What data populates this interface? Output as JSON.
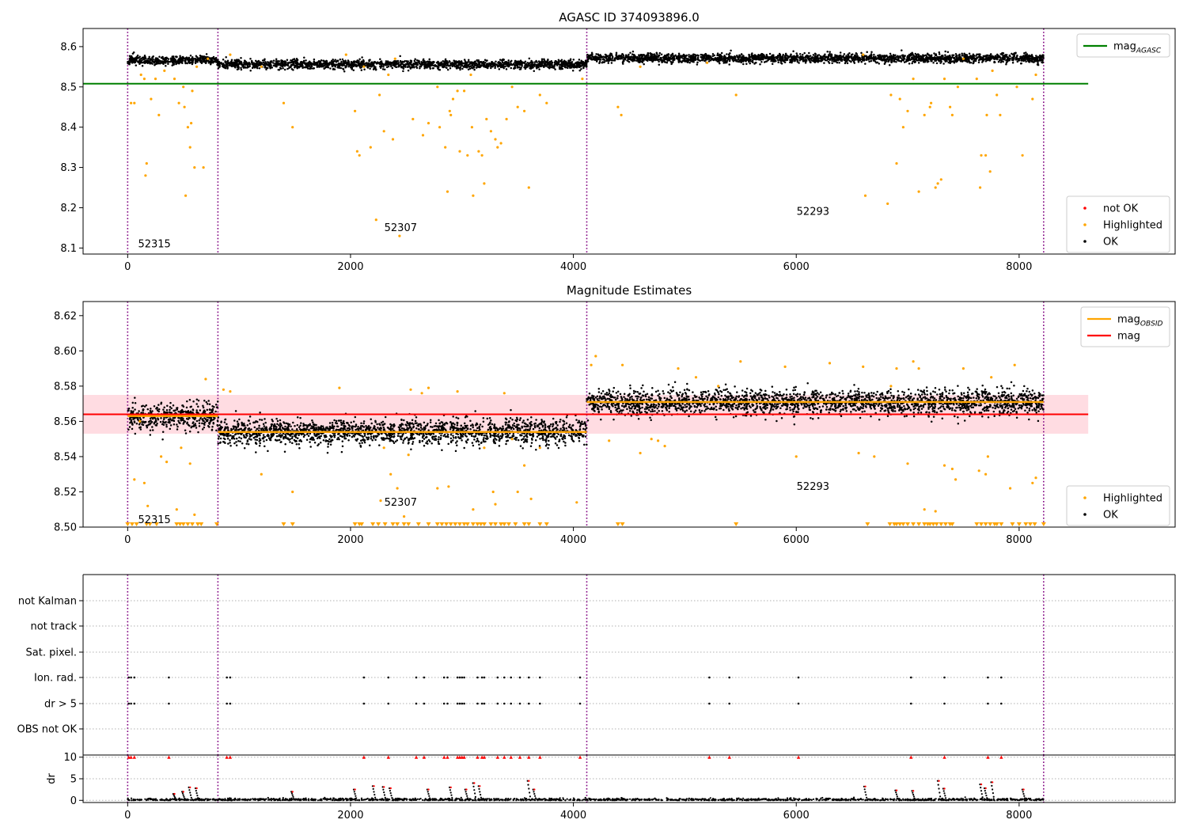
{
  "figure": {
    "title": "AGASC ID 374093896.0",
    "colors": {
      "ok": "#000000",
      "highlighted": "#ffa500",
      "not_ok": "#ff0000",
      "mag_agasc": "#008000",
      "mag": "#ff0000",
      "mag_obsid": "#ffa500",
      "band": "#ffc0cb",
      "boundary": "#800080"
    }
  },
  "chart_data": [
    {
      "type": "scatter",
      "title": "AGASC ID 374093896.0",
      "xlim": [
        -400,
        9400
      ],
      "ylim": [
        8.085,
        8.645
      ],
      "x_ticks": [
        0,
        2000,
        4000,
        6000,
        8000
      ],
      "y_ticks": [
        8.1,
        8.2,
        8.3,
        8.4,
        8.5,
        8.6
      ],
      "y_tick_labels": [
        "8.1",
        "8.2",
        "8.3",
        "8.4",
        "8.5",
        "8.6"
      ],
      "obsid_boundaries": [
        0,
        810,
        4120,
        8220
      ],
      "obsid_labels": [
        {
          "label": "52315",
          "x": 240,
          "y": 8.11
        },
        {
          "label": "52307",
          "x": 2450,
          "y": 8.15
        },
        {
          "label": "52293",
          "x": 6150,
          "y": 8.19
        }
      ],
      "reference_lines": [
        {
          "name": "mag_AGASC",
          "y": 8.508,
          "x_range": [
            -400,
            8620
          ],
          "color": "#008000"
        }
      ],
      "ok_segments": [
        {
          "x_range": [
            0,
            810
          ],
          "mean": 8.566,
          "spread": 0.012
        },
        {
          "x_range": [
            810,
            4120
          ],
          "mean": 8.556,
          "spread": 0.012
        },
        {
          "x_range": [
            4120,
            8220
          ],
          "mean": 8.571,
          "spread": 0.012
        }
      ],
      "highlighted_points": [
        [
          30,
          8.46
        ],
        [
          60,
          8.46
        ],
        [
          120,
          8.53
        ],
        [
          150,
          8.52
        ],
        [
          160,
          8.28
        ],
        [
          170,
          8.31
        ],
        [
          210,
          8.47
        ],
        [
          250,
          8.52
        ],
        [
          280,
          8.43
        ],
        [
          330,
          8.54
        ],
        [
          420,
          8.52
        ],
        [
          460,
          8.46
        ],
        [
          500,
          8.5
        ],
        [
          510,
          8.45
        ],
        [
          520,
          8.23
        ],
        [
          540,
          8.4
        ],
        [
          560,
          8.35
        ],
        [
          570,
          8.41
        ],
        [
          580,
          8.49
        ],
        [
          600,
          8.3
        ],
        [
          620,
          8.55
        ],
        [
          680,
          8.3
        ],
        [
          720,
          8.57
        ],
        [
          920,
          8.58
        ],
        [
          1200,
          8.55
        ],
        [
          1400,
          8.46
        ],
        [
          1480,
          8.4
        ],
        [
          1960,
          8.58
        ],
        [
          2040,
          8.44
        ],
        [
          2060,
          8.34
        ],
        [
          2080,
          8.33
        ],
        [
          2120,
          8.55
        ],
        [
          2180,
          8.35
        ],
        [
          2230,
          8.17
        ],
        [
          2260,
          8.48
        ],
        [
          2300,
          8.39
        ],
        [
          2340,
          8.53
        ],
        [
          2380,
          8.37
        ],
        [
          2400,
          8.57
        ],
        [
          2440,
          8.13
        ],
        [
          2560,
          8.42
        ],
        [
          2650,
          8.38
        ],
        [
          2700,
          8.41
        ],
        [
          2780,
          8.5
        ],
        [
          2800,
          8.4
        ],
        [
          2850,
          8.35
        ],
        [
          2870,
          8.24
        ],
        [
          2890,
          8.44
        ],
        [
          2900,
          8.43
        ],
        [
          2920,
          8.47
        ],
        [
          2960,
          8.49
        ],
        [
          2980,
          8.34
        ],
        [
          3020,
          8.49
        ],
        [
          3050,
          8.33
        ],
        [
          3080,
          8.53
        ],
        [
          3090,
          8.4
        ],
        [
          3100,
          8.23
        ],
        [
          3150,
          8.34
        ],
        [
          3180,
          8.33
        ],
        [
          3200,
          8.26
        ],
        [
          3220,
          8.42
        ],
        [
          3260,
          8.39
        ],
        [
          3300,
          8.37
        ],
        [
          3320,
          8.35
        ],
        [
          3350,
          8.36
        ],
        [
          3400,
          8.42
        ],
        [
          3450,
          8.5
        ],
        [
          3500,
          8.45
        ],
        [
          3560,
          8.44
        ],
        [
          3600,
          8.25
        ],
        [
          3700,
          8.48
        ],
        [
          3760,
          8.46
        ],
        [
          4080,
          8.52
        ],
        [
          4400,
          8.45
        ],
        [
          4430,
          8.43
        ],
        [
          4600,
          8.55
        ],
        [
          5200,
          8.56
        ],
        [
          5460,
          8.48
        ],
        [
          6600,
          8.58
        ],
        [
          6620,
          8.23
        ],
        [
          6820,
          8.21
        ],
        [
          6850,
          8.48
        ],
        [
          6900,
          8.31
        ],
        [
          6930,
          8.47
        ],
        [
          6960,
          8.4
        ],
        [
          7000,
          8.44
        ],
        [
          7050,
          8.52
        ],
        [
          7100,
          8.24
        ],
        [
          7150,
          8.43
        ],
        [
          7200,
          8.45
        ],
        [
          7210,
          8.46
        ],
        [
          7250,
          8.25
        ],
        [
          7270,
          8.26
        ],
        [
          7300,
          8.27
        ],
        [
          7330,
          8.52
        ],
        [
          7380,
          8.45
        ],
        [
          7400,
          8.43
        ],
        [
          7450,
          8.5
        ],
        [
          7500,
          8.57
        ],
        [
          7620,
          8.52
        ],
        [
          7650,
          8.25
        ],
        [
          7660,
          8.33
        ],
        [
          7700,
          8.33
        ],
        [
          7710,
          8.43
        ],
        [
          7740,
          8.29
        ],
        [
          7760,
          8.54
        ],
        [
          7800,
          8.48
        ],
        [
          7830,
          8.43
        ],
        [
          7980,
          8.5
        ],
        [
          8030,
          8.33
        ],
        [
          8120,
          8.47
        ],
        [
          8150,
          8.53
        ]
      ],
      "legend": [
        {
          "label": "mag_AGASC",
          "marker": "line",
          "color": "#008000"
        },
        {
          "label": "not OK",
          "marker": "point",
          "color": "#ff0000"
        },
        {
          "label": "Highlighted",
          "marker": "point",
          "color": "#ffa500"
        },
        {
          "label": "OK",
          "marker": "point",
          "color": "#000000"
        }
      ]
    },
    {
      "type": "scatter",
      "title": "Magnitude Estimates",
      "xlim": [
        -400,
        9400
      ],
      "ylim": [
        8.5,
        8.628
      ],
      "x_ticks": [
        0,
        2000,
        4000,
        6000,
        8000
      ],
      "y_ticks": [
        8.5,
        8.52,
        8.54,
        8.56,
        8.58,
        8.6,
        8.62
      ],
      "y_tick_labels": [
        "8.50",
        "8.52",
        "8.54",
        "8.56",
        "8.58",
        "8.60",
        "8.62"
      ],
      "obsid_boundaries": [
        0,
        810,
        4120,
        8220
      ],
      "obsid_labels": [
        {
          "label": "52315",
          "x": 240,
          "y": 8.504
        },
        {
          "label": "52307",
          "x": 2450,
          "y": 8.514
        },
        {
          "label": "52293",
          "x": 6150,
          "y": 8.523
        }
      ],
      "mag": 8.564,
      "mag_band": [
        8.553,
        8.575
      ],
      "mag_x_range": [
        -400,
        8620
      ],
      "mag_obsid": [
        {
          "x_range": [
            0,
            810
          ],
          "y": 8.563
        },
        {
          "x_range": [
            810,
            4120
          ],
          "y": 8.554
        },
        {
          "x_range": [
            4120,
            8220
          ],
          "y": 8.571
        }
      ],
      "ok_segments": [
        {
          "x_range": [
            0,
            810
          ],
          "mean": 8.563,
          "spread": 0.008
        },
        {
          "x_range": [
            810,
            4120
          ],
          "mean": 8.554,
          "spread": 0.008
        },
        {
          "x_range": [
            4120,
            8220
          ],
          "mean": 8.571,
          "spread": 0.008
        }
      ],
      "highlighted_points": [
        [
          60,
          8.527
        ],
        [
          110,
          8.56
        ],
        [
          150,
          8.525
        ],
        [
          180,
          8.512
        ],
        [
          300,
          8.54
        ],
        [
          350,
          8.537
        ],
        [
          440,
          8.51
        ],
        [
          480,
          8.545
        ],
        [
          560,
          8.536
        ],
        [
          600,
          8.507
        ],
        [
          700,
          8.584
        ],
        [
          860,
          8.578
        ],
        [
          920,
          8.577
        ],
        [
          1200,
          8.53
        ],
        [
          1480,
          8.52
        ],
        [
          1900,
          8.579
        ],
        [
          2270,
          8.515
        ],
        [
          2300,
          8.545
        ],
        [
          2360,
          8.53
        ],
        [
          2420,
          8.522
        ],
        [
          2480,
          8.506
        ],
        [
          2520,
          8.541
        ],
        [
          2540,
          8.578
        ],
        [
          2640,
          8.576
        ],
        [
          2700,
          8.579
        ],
        [
          2780,
          8.522
        ],
        [
          2880,
          8.523
        ],
        [
          2960,
          8.577
        ],
        [
          3100,
          8.51
        ],
        [
          3200,
          8.545
        ],
        [
          3280,
          8.52
        ],
        [
          3300,
          8.513
        ],
        [
          3380,
          8.576
        ],
        [
          3450,
          8.55
        ],
        [
          3500,
          8.52
        ],
        [
          3560,
          8.535
        ],
        [
          3620,
          8.516
        ],
        [
          3700,
          8.545
        ],
        [
          4030,
          8.514
        ],
        [
          4160,
          8.592
        ],
        [
          4200,
          8.597
        ],
        [
          4320,
          8.549
        ],
        [
          4440,
          8.592
        ],
        [
          4600,
          8.542
        ],
        [
          4700,
          8.55
        ],
        [
          4760,
          8.549
        ],
        [
          4820,
          8.546
        ],
        [
          4940,
          8.59
        ],
        [
          5100,
          8.585
        ],
        [
          5300,
          8.58
        ],
        [
          5500,
          8.594
        ],
        [
          5900,
          8.591
        ],
        [
          6000,
          8.54
        ],
        [
          6300,
          8.593
        ],
        [
          6560,
          8.542
        ],
        [
          6600,
          8.591
        ],
        [
          6700,
          8.54
        ],
        [
          6850,
          8.58
        ],
        [
          6900,
          8.59
        ],
        [
          7000,
          8.536
        ],
        [
          7050,
          8.594
        ],
        [
          7100,
          8.59
        ],
        [
          7150,
          8.51
        ],
        [
          7250,
          8.509
        ],
        [
          7330,
          8.535
        ],
        [
          7400,
          8.533
        ],
        [
          7430,
          8.527
        ],
        [
          7500,
          8.59
        ],
        [
          7640,
          8.532
        ],
        [
          7700,
          8.53
        ],
        [
          7720,
          8.54
        ],
        [
          7750,
          8.585
        ],
        [
          7920,
          8.522
        ],
        [
          7960,
          8.592
        ],
        [
          8120,
          8.525
        ],
        [
          8150,
          8.528
        ]
      ],
      "floor_markers_x": [
        0,
        40,
        80,
        170,
        200,
        260,
        440,
        470,
        500,
        540,
        580,
        630,
        660,
        800,
        1400,
        1480,
        2040,
        2080,
        2100,
        2200,
        2250,
        2310,
        2380,
        2420,
        2480,
        2520,
        2610,
        2700,
        2780,
        2820,
        2860,
        2900,
        2940,
        2980,
        3020,
        3050,
        3100,
        3140,
        3170,
        3200,
        3260,
        3300,
        3350,
        3380,
        3420,
        3480,
        3560,
        3600,
        3700,
        3760,
        4400,
        4440,
        5460,
        6640,
        6840,
        6880,
        6900,
        6930,
        6960,
        7000,
        7050,
        7100,
        7150,
        7180,
        7200,
        7230,
        7260,
        7300,
        7340,
        7380,
        7400,
        7620,
        7660,
        7700,
        7740,
        7780,
        7800,
        7840,
        7940,
        8000,
        8060,
        8100,
        8140,
        8220
      ],
      "legend": [
        {
          "label": "mag_OBSID",
          "marker": "line",
          "color": "#ffa500"
        },
        {
          "label": "mag",
          "marker": "line",
          "color": "#ff0000"
        },
        {
          "label": "Highlighted",
          "marker": "point",
          "color": "#ffa500"
        },
        {
          "label": "OK",
          "marker": "point",
          "color": "#000000"
        }
      ]
    },
    {
      "type": "scatter",
      "title": "",
      "xlim": [
        -400,
        9400
      ],
      "x_ticks": [
        0,
        2000,
        4000,
        6000,
        8000
      ],
      "obsid_boundaries": [
        0,
        810,
        4120,
        8220
      ],
      "flag_rows": [
        "not Kalman",
        "not track",
        "Sat. pixel.",
        "Ion. rad.",
        "dr > 5",
        "OBS not OK"
      ],
      "flag_events": {
        "Ion. rad.": [
          10,
          30,
          60,
          370,
          890,
          920,
          2120,
          2340,
          2590,
          2660,
          2840,
          2870,
          2960,
          2980,
          3000,
          3020,
          3140,
          3180,
          3200,
          3320,
          3380,
          3440,
          3520,
          3600,
          3700,
          4060,
          5220,
          5400,
          6020,
          7030,
          7330,
          7720,
          7840
        ],
        "dr > 5": [
          10,
          30,
          60,
          370,
          890,
          920,
          2120,
          2340,
          2590,
          2660,
          2840,
          2870,
          2960,
          2980,
          3000,
          3020,
          3140,
          3180,
          3200,
          3320,
          3380,
          3440,
          3520,
          3600,
          3700,
          4060,
          5220,
          5400,
          6020,
          7030,
          7330,
          7720,
          7840
        ]
      },
      "dr": {
        "ylabel": "dr",
        "ylim": [
          -0.5,
          10.5
        ],
        "y_ticks": [
          0,
          5,
          10
        ],
        "y_tick_labels": [
          "0",
          "5",
          "10"
        ],
        "clipped_value": 10,
        "highlight_points": [
          [
            420,
            1.5
          ],
          [
            500,
            2
          ],
          [
            560,
            3
          ],
          [
            620,
            2.8
          ],
          [
            1480,
            2
          ],
          [
            2040,
            2.5
          ],
          [
            2210,
            3.3
          ],
          [
            2300,
            3.1
          ],
          [
            2360,
            2.8
          ],
          [
            2700,
            2.5
          ],
          [
            2900,
            3
          ],
          [
            3040,
            2.5
          ],
          [
            3110,
            4
          ],
          [
            3160,
            3.3
          ],
          [
            3600,
            4.5
          ],
          [
            3650,
            2.5
          ],
          [
            6620,
            3.2
          ],
          [
            6900,
            2.3
          ],
          [
            7050,
            2.2
          ],
          [
            7280,
            4.5
          ],
          [
            7330,
            2.7
          ],
          [
            7660,
            3.7
          ],
          [
            7700,
            2.8
          ],
          [
            7760,
            4.2
          ],
          [
            8040,
            2.5
          ]
        ]
      }
    }
  ]
}
